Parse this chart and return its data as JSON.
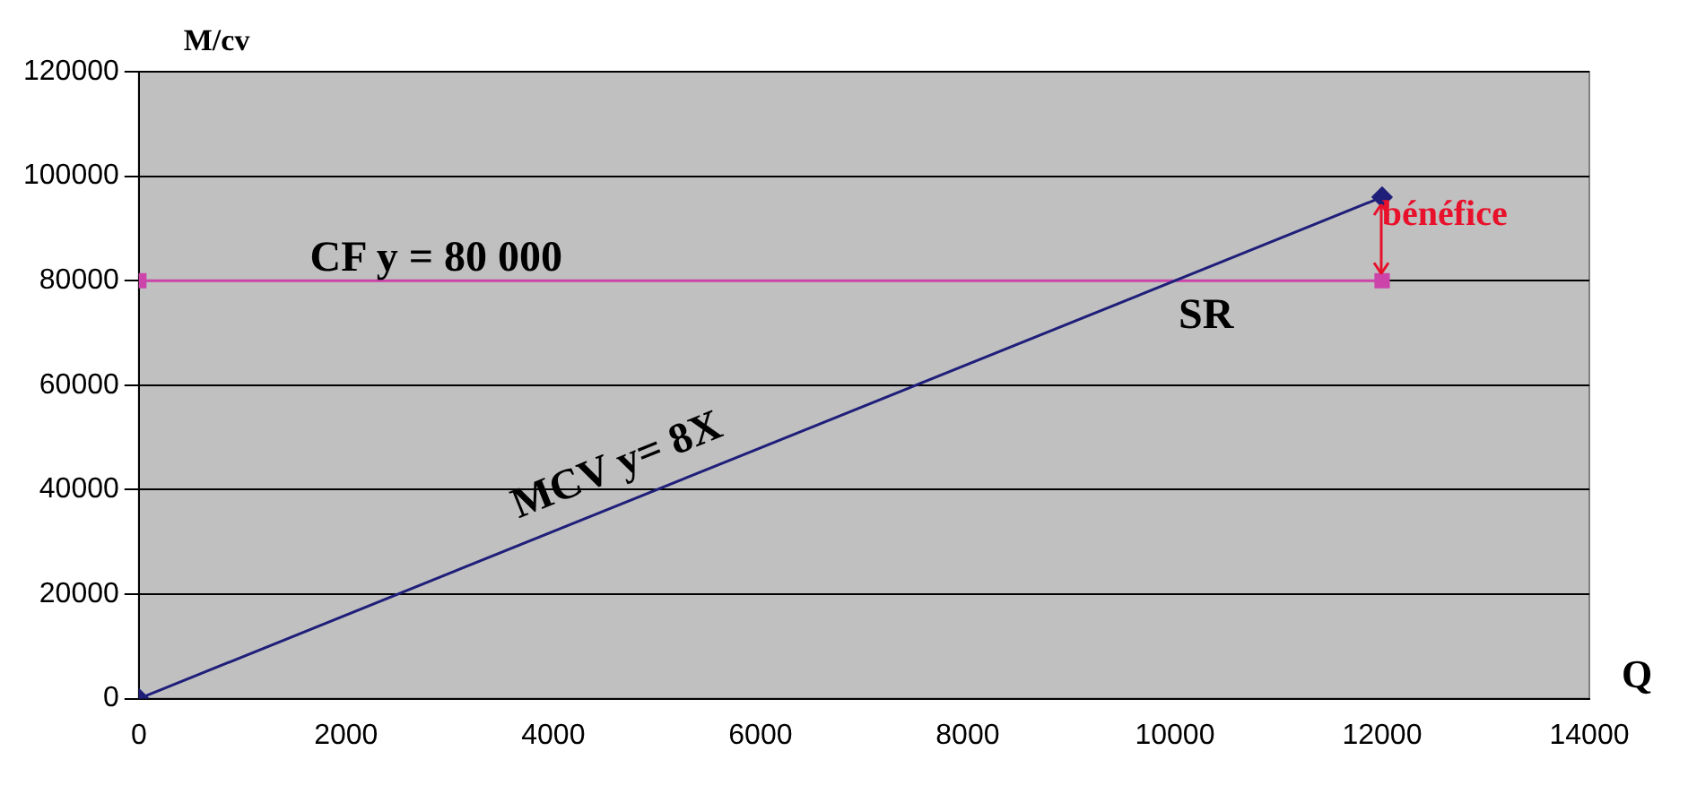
{
  "chart_data": {
    "type": "line",
    "xlabel": "Q",
    "ylabel": "M/cv",
    "x": [
      0,
      12000
    ],
    "series": [
      {
        "color": "#1f1f7a",
        "values": [
          0,
          96000
        ],
        "marker": "diamond"
      },
      {
        "color": "#cc44aa",
        "values": [
          80000,
          80000
        ],
        "marker": "square"
      }
    ],
    "xlim": [
      0,
      14000
    ],
    "xticks": [
      0,
      2000,
      4000,
      6000,
      8000,
      10000,
      12000,
      14000
    ],
    "ylim": [
      0,
      120000
    ],
    "yticks": [
      0,
      20000,
      40000,
      60000,
      80000,
      100000,
      120000
    ],
    "grid": "y",
    "legend": false,
    "line_style": "solid",
    "annotations": [
      "CF y = 80 000",
      "MCV y= 8X",
      {
        "text": "SR",
        "x": 10000,
        "y": 80000
      },
      "bénéfice"
    ]
  }
}
